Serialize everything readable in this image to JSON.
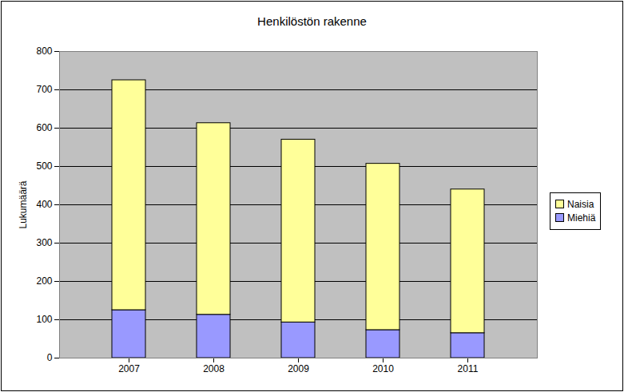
{
  "chart_data": {
    "type": "bar",
    "stacked": true,
    "title": "Henkilöstön rakenne",
    "y_label": "Lukumäärä",
    "categories": [
      "2007",
      "2008",
      "2009",
      "2010",
      "2011"
    ],
    "series": [
      {
        "name": "Miehiä",
        "color": "#9999ff",
        "values": [
          125,
          113,
          93,
          73,
          65
        ]
      },
      {
        "name": "Naisia",
        "color": "#ffff99",
        "values": [
          600,
          500,
          477,
          434,
          375
        ]
      }
    ],
    "ylim": [
      0,
      800
    ],
    "yticks": [
      0,
      100,
      200,
      300,
      400,
      500,
      600,
      700,
      800
    ],
    "grid": true,
    "legend": "right"
  }
}
